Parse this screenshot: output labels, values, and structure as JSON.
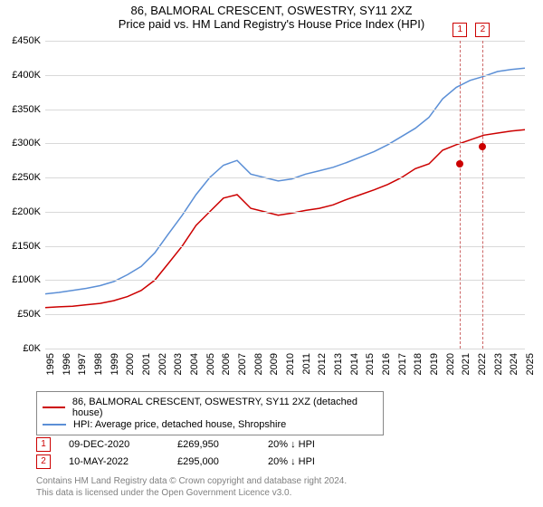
{
  "title_line1": "86, BALMORAL CRESCENT, OSWESTRY, SY11 2XZ",
  "title_line2": "Price paid vs. HM Land Registry's House Price Index (HPI)",
  "chart": {
    "type": "line",
    "background_color": "#ffffff",
    "grid_color": "#d9d9d9",
    "text_color": "#000000",
    "ylim": [
      0,
      450
    ],
    "ytick_step": 50,
    "ytick_prefix": "£",
    "ytick_suffix": "K",
    "xlim": [
      1995,
      2025
    ],
    "xtick_step": 1,
    "series": [
      {
        "id": "property",
        "label": "86, BALMORAL CRESCENT, OSWESTRY, SY11 2XZ (detached house)",
        "color": "#cc0000",
        "width": 1.5,
        "values_k": [
          60,
          61,
          62,
          64,
          66,
          70,
          76,
          85,
          100,
          125,
          150,
          180,
          200,
          220,
          225,
          205,
          200,
          195,
          198,
          202,
          205,
          210,
          218,
          225,
          232,
          240,
          250,
          263,
          270,
          290,
          298,
          305,
          312,
          315,
          318,
          320
        ]
      },
      {
        "id": "hpi",
        "label": "HPI: Average price, detached house, Shropshire",
        "color": "#5b8fd6",
        "width": 1.5,
        "values_k": [
          80,
          82,
          85,
          88,
          92,
          98,
          108,
          120,
          140,
          168,
          195,
          225,
          250,
          268,
          275,
          255,
          250,
          245,
          248,
          255,
          260,
          265,
          272,
          280,
          288,
          298,
          310,
          322,
          338,
          365,
          382,
          392,
          398,
          405,
          408,
          410
        ]
      }
    ],
    "markers": [
      {
        "num": "1",
        "date": "09-DEC-2020",
        "price": "£269,950",
        "diff": "20% ↓ HPI",
        "year": 2020.94,
        "value_k": 270,
        "color": "#cc0000"
      },
      {
        "num": "2",
        "date": "10-MAY-2022",
        "price": "£295,000",
        "diff": "20% ↓ HPI",
        "year": 2022.36,
        "value_k": 295,
        "color": "#cc0000"
      }
    ],
    "marker_line_color": "#cc6666"
  },
  "legend_border": "#888888",
  "footer_line1": "Contains HM Land Registry data © Crown copyright and database right 2024.",
  "footer_line2": "This data is licensed under the Open Government Licence v3.0.",
  "footer_color": "#808080"
}
